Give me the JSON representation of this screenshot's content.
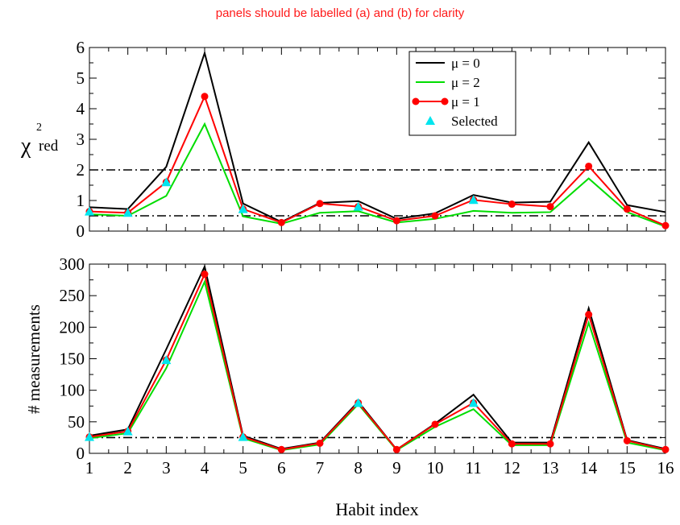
{
  "note": "panels should be labelled (a) and (b) for clarity",
  "colors": {
    "mu0": "#000000",
    "mu2": "#00dd00",
    "mu1": "#ff0000",
    "selected": "#00e5ee",
    "note": "#ff1a1a",
    "reference": "#000000"
  },
  "chart_data": [
    {
      "type": "line",
      "ylabel_main": "χ",
      "ylabel_sup": "2",
      "ylabel_sub": "red",
      "xlabel": "",
      "xlim": [
        1,
        16
      ],
      "ylim": [
        0,
        6
      ],
      "yticks": [
        0,
        1,
        2,
        3,
        4,
        5,
        6
      ],
      "x": [
        1,
        2,
        3,
        4,
        5,
        6,
        7,
        8,
        9,
        10,
        11,
        12,
        13,
        14,
        15,
        16
      ],
      "reference_lines": [
        2,
        0.5
      ],
      "series": [
        {
          "name": "μ = 0",
          "key": "mu0",
          "style": "line",
          "values": [
            0.78,
            0.72,
            2.1,
            5.82,
            0.9,
            0.3,
            0.92,
            0.98,
            0.4,
            0.58,
            1.18,
            0.93,
            0.96,
            2.9,
            0.85,
            0.62
          ]
        },
        {
          "name": "μ = 2",
          "key": "mu2",
          "style": "line",
          "values": [
            0.55,
            0.5,
            1.15,
            3.5,
            0.48,
            0.24,
            0.6,
            0.65,
            0.28,
            0.4,
            0.66,
            0.6,
            0.62,
            1.72,
            0.62,
            0.15
          ]
        },
        {
          "name": "μ = 1",
          "key": "mu1",
          "style": "line+marker",
          "values": [
            0.64,
            0.6,
            1.6,
            4.4,
            0.72,
            0.28,
            0.9,
            0.8,
            0.34,
            0.5,
            1.02,
            0.88,
            0.8,
            2.12,
            0.72,
            0.18
          ]
        },
        {
          "name": "Selected",
          "key": "selected",
          "style": "marker",
          "x": [
            1,
            2,
            3,
            5,
            8,
            11
          ],
          "values": [
            0.64,
            0.6,
            1.6,
            0.72,
            0.8,
            1.02
          ]
        }
      ],
      "legend": "top-right"
    },
    {
      "type": "line",
      "ylabel": "# measurements",
      "xlabel": "Habit index",
      "xlim": [
        1,
        16
      ],
      "ylim": [
        0,
        300
      ],
      "yticks": [
        0,
        50,
        100,
        150,
        200,
        250,
        300
      ],
      "x": [
        1,
        2,
        3,
        4,
        5,
        6,
        7,
        8,
        9,
        10,
        11,
        12,
        13,
        14,
        15,
        16
      ],
      "reference_lines": [
        25
      ],
      "series": [
        {
          "key": "mu0",
          "style": "line",
          "values": [
            28,
            38,
            165,
            296,
            28,
            7,
            17,
            82,
            6,
            47,
            93,
            17,
            17,
            230,
            21,
            7
          ]
        },
        {
          "key": "mu2",
          "style": "line",
          "values": [
            24,
            32,
            135,
            272,
            24,
            5,
            14,
            78,
            5,
            42,
            70,
            13,
            13,
            207,
            17,
            5
          ]
        },
        {
          "key": "mu1",
          "style": "line+marker",
          "values": [
            26,
            35,
            148,
            284,
            26,
            6,
            16,
            80,
            6,
            46,
            80,
            15,
            15,
            220,
            20,
            6
          ]
        },
        {
          "key": "selected",
          "style": "marker",
          "x": [
            1,
            2,
            3,
            5,
            8,
            11
          ],
          "values": [
            26,
            35,
            148,
            26,
            80,
            80
          ]
        }
      ]
    }
  ]
}
